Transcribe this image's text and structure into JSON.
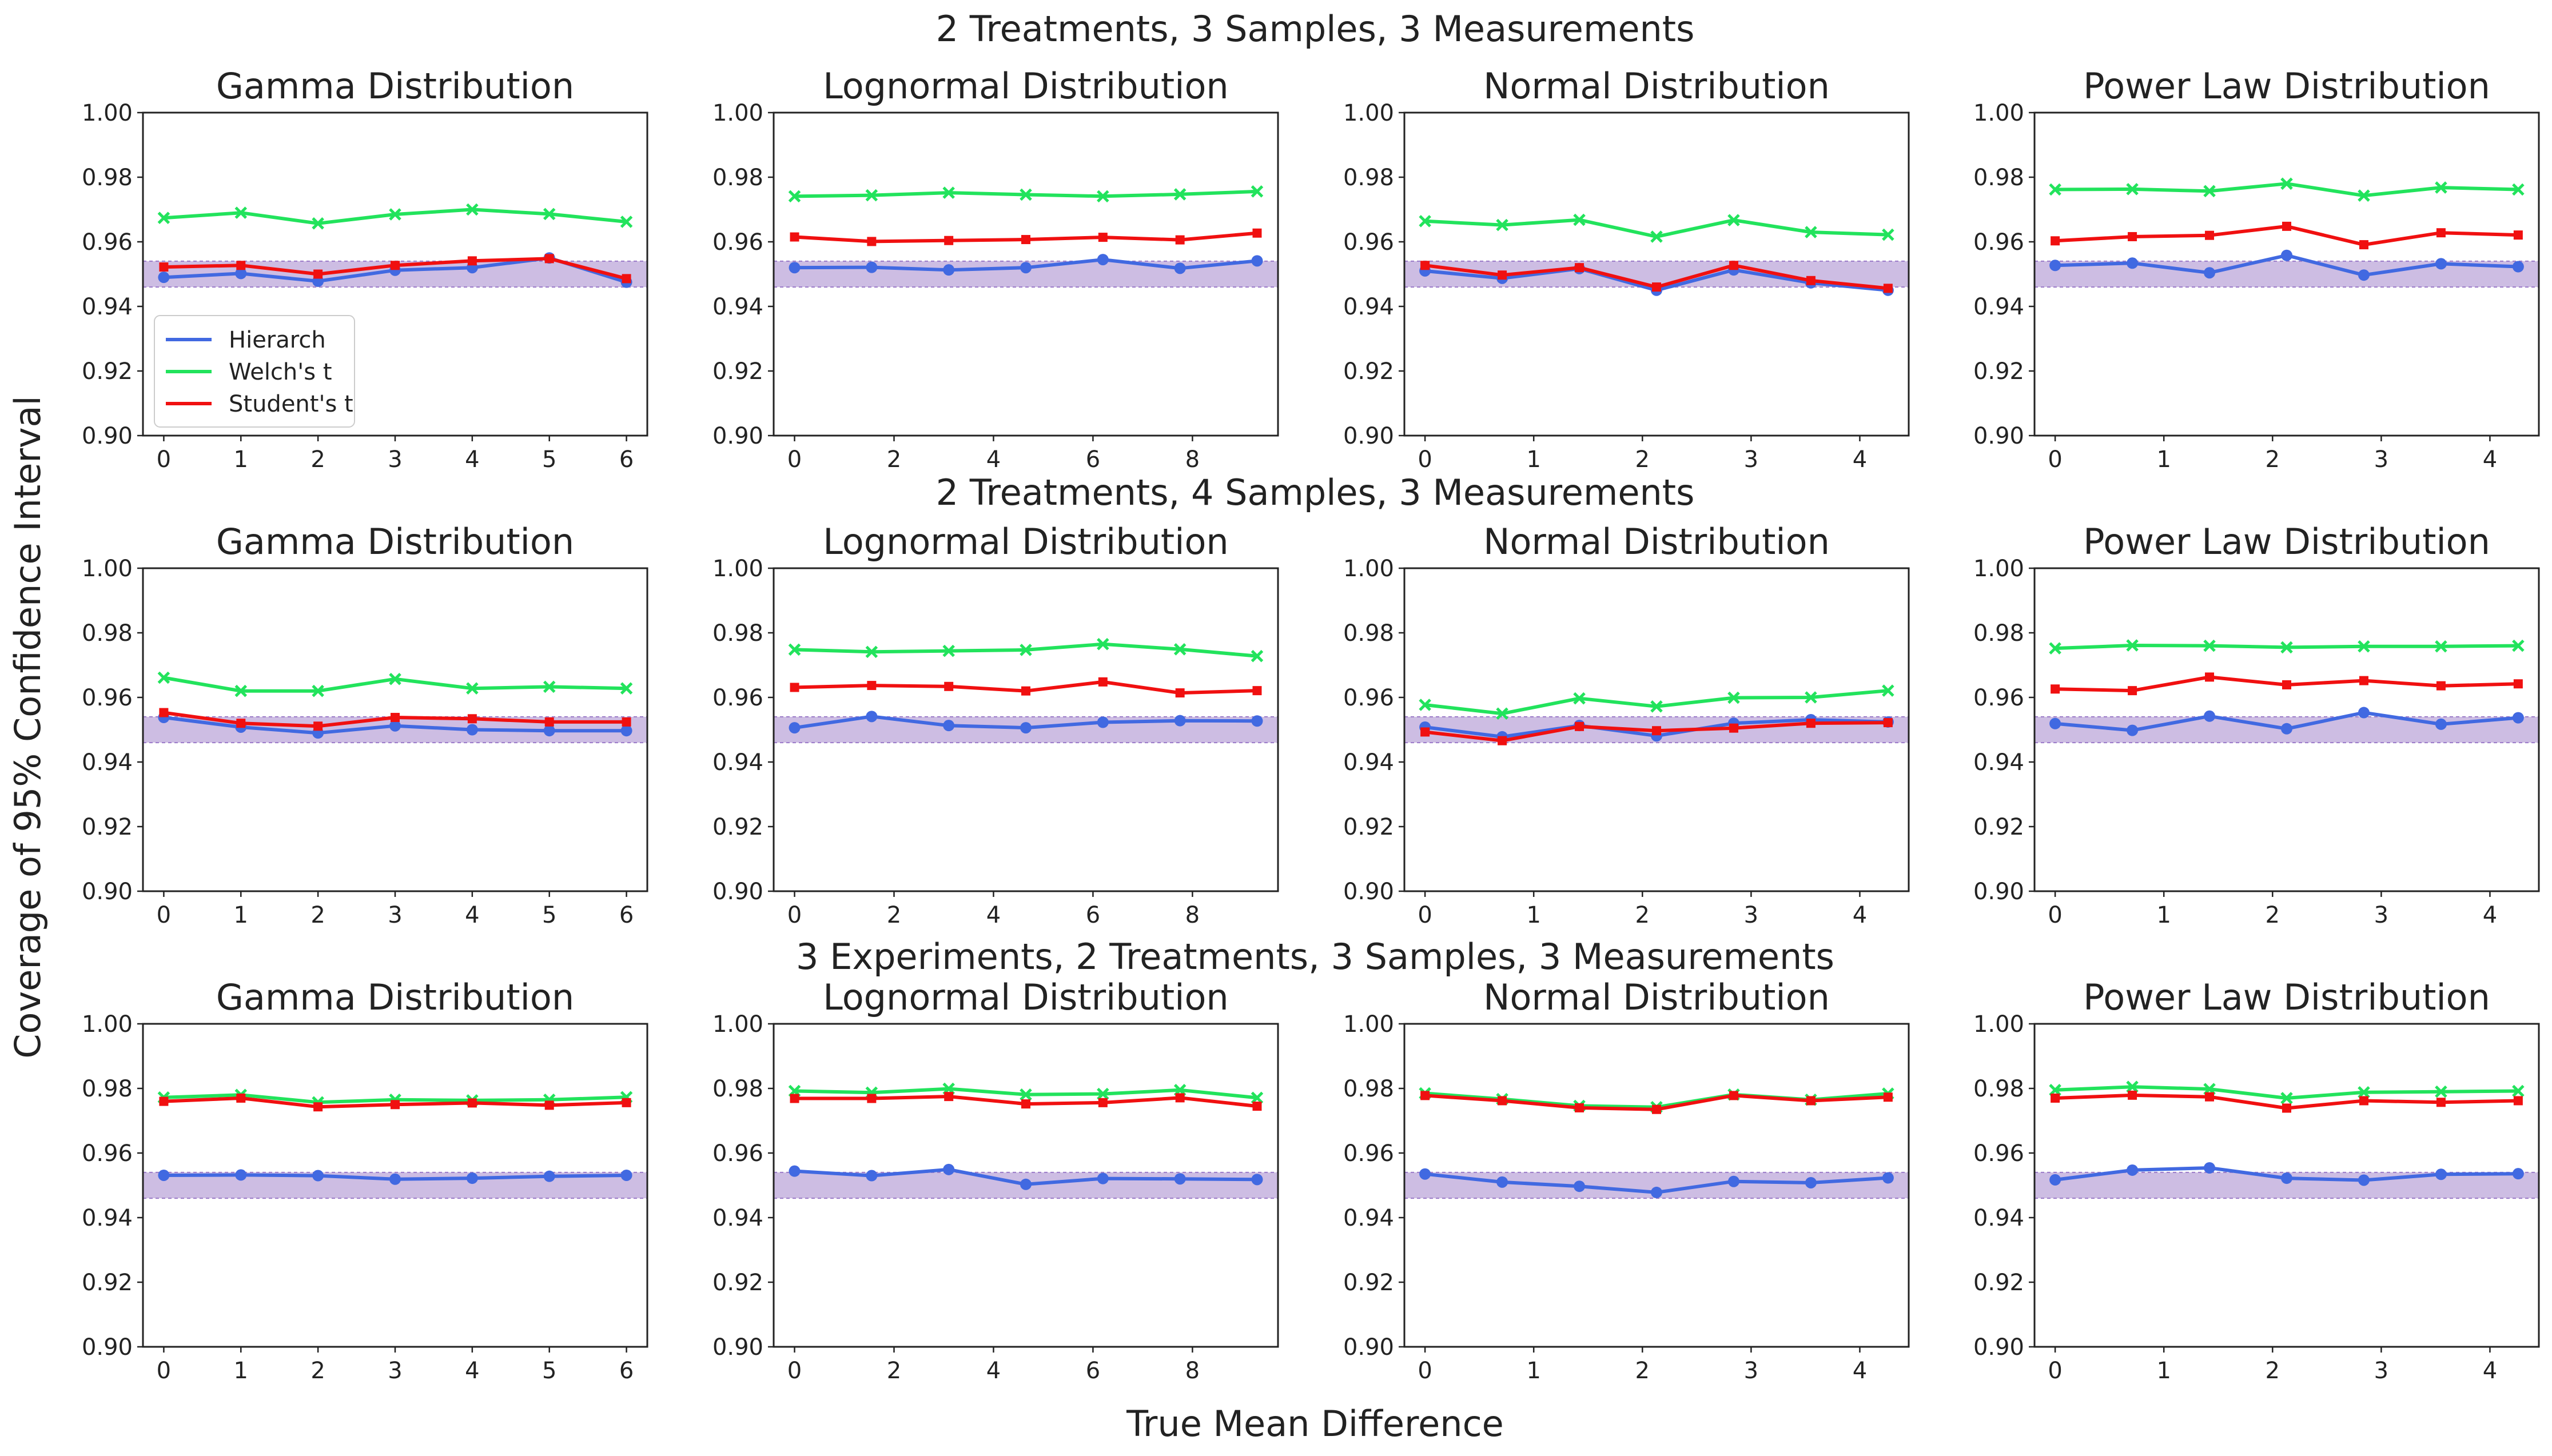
{
  "figure": {
    "ylabel": "Coverage of 95% Confidence Interval",
    "xlabel": "True Mean Difference"
  },
  "legend": {
    "placement": "lower-left of first panel",
    "entries": [
      {
        "name": "Hierarch",
        "color": "#4169E1",
        "marker": "circle"
      },
      {
        "name": "Welch's t",
        "color": "#22E35C",
        "marker": "x"
      },
      {
        "name": "Student's t",
        "color": "#F01010",
        "marker": "square"
      }
    ]
  },
  "band": {
    "range": [
      0.946,
      0.954
    ],
    "color": "#9B7BC8"
  },
  "rows": [
    {
      "title": "2 Treatments, 3 Samples, 3 Measurements"
    },
    {
      "title": "2 Treatments, 4 Samples, 3 Measurements"
    },
    {
      "title": "3 Experiments, 2 Treatments, 3 Samples, 3 Measurements"
    }
  ],
  "chart_data": [
    {
      "type": "line",
      "row": 0,
      "title": "Gamma Distribution",
      "x": [
        0,
        1,
        2,
        3,
        4,
        5,
        6
      ],
      "xlim": [
        -0.27,
        6.27
      ],
      "xticks": [
        "0",
        "1",
        "2",
        "3",
        "4",
        "5",
        "6"
      ],
      "xtick_values": [
        0,
        1,
        2,
        3,
        4,
        5,
        6
      ],
      "ylim": [
        0.9,
        1.0
      ],
      "yticks": [
        "0.90",
        "0.92",
        "0.94",
        "0.96",
        "0.98",
        "1.00"
      ],
      "legend": true,
      "series": [
        {
          "name": "Hierarch",
          "values": [
            0.949,
            0.9502,
            0.9478,
            0.9512,
            0.952,
            0.955,
            0.9475
          ]
        },
        {
          "name": "Welch's t",
          "values": [
            0.9674,
            0.969,
            0.9657,
            0.9685,
            0.97,
            0.9686,
            0.9662
          ]
        },
        {
          "name": "Student's t",
          "values": [
            0.9522,
            0.9527,
            0.95,
            0.9527,
            0.9541,
            0.9548,
            0.9486
          ]
        }
      ]
    },
    {
      "type": "line",
      "row": 0,
      "title": "Lognormal Distribution",
      "x": [
        0,
        1.55,
        3.1,
        4.65,
        6.2,
        7.75,
        9.3
      ],
      "xlim": [
        -0.42,
        9.72
      ],
      "xticks": [
        "0",
        "2",
        "4",
        "6",
        "8"
      ],
      "xtick_values": [
        0,
        2,
        4,
        6,
        8
      ],
      "ylim": [
        0.9,
        1.0
      ],
      "yticks": [
        "0.90",
        "0.92",
        "0.94",
        "0.96",
        "0.98",
        "1.00"
      ],
      "series": [
        {
          "name": "Hierarch",
          "values": [
            0.952,
            0.9521,
            0.9513,
            0.952,
            0.9545,
            0.9518,
            0.9541
          ]
        },
        {
          "name": "Welch's t",
          "values": [
            0.9741,
            0.9744,
            0.9752,
            0.9746,
            0.9741,
            0.9747,
            0.9756
          ]
        },
        {
          "name": "Student's t",
          "values": [
            0.9615,
            0.9601,
            0.9604,
            0.9607,
            0.9614,
            0.9606,
            0.9627
          ]
        }
      ]
    },
    {
      "type": "line",
      "row": 0,
      "title": "Normal Distribution",
      "x": [
        0,
        0.71,
        1.42,
        2.13,
        2.84,
        3.55,
        4.26
      ],
      "xlim": [
        -0.19,
        4.45
      ],
      "xticks": [
        "0",
        "1",
        "2",
        "3",
        "4"
      ],
      "xtick_values": [
        0,
        1,
        2,
        3,
        4
      ],
      "ylim": [
        0.9,
        1.0
      ],
      "yticks": [
        "0.90",
        "0.92",
        "0.94",
        "0.96",
        "0.98",
        "1.00"
      ],
      "series": [
        {
          "name": "Hierarch",
          "values": [
            0.951,
            0.9487,
            0.9517,
            0.945,
            0.9513,
            0.9473,
            0.945
          ]
        },
        {
          "name": "Welch's t",
          "values": [
            0.9664,
            0.9652,
            0.9668,
            0.9616,
            0.9667,
            0.963,
            0.9622
          ]
        },
        {
          "name": "Student's t",
          "values": [
            0.9527,
            0.9497,
            0.952,
            0.946,
            0.9527,
            0.948,
            0.9456
          ]
        }
      ]
    },
    {
      "type": "line",
      "row": 0,
      "title": "Power Law Distribution",
      "x": [
        0,
        0.71,
        1.42,
        2.13,
        2.84,
        3.55,
        4.26
      ],
      "xlim": [
        -0.19,
        4.45
      ],
      "xticks": [
        "0",
        "1",
        "2",
        "3",
        "4"
      ],
      "xtick_values": [
        0,
        1,
        2,
        3,
        4
      ],
      "ylim": [
        0.9,
        1.0
      ],
      "yticks": [
        "0.90",
        "0.92",
        "0.94",
        "0.96",
        "0.98",
        "1.00"
      ],
      "series": [
        {
          "name": "Hierarch",
          "values": [
            0.9527,
            0.9534,
            0.9504,
            0.9558,
            0.9497,
            0.9532,
            0.9523
          ]
        },
        {
          "name": "Welch's t",
          "values": [
            0.9762,
            0.9763,
            0.9757,
            0.978,
            0.9743,
            0.9768,
            0.9762
          ]
        },
        {
          "name": "Student's t",
          "values": [
            0.9603,
            0.9616,
            0.962,
            0.9648,
            0.9591,
            0.9628,
            0.9621
          ]
        }
      ]
    },
    {
      "type": "line",
      "row": 1,
      "title": "Gamma Distribution",
      "x": [
        0,
        1,
        2,
        3,
        4,
        5,
        6
      ],
      "xlim": [
        -0.27,
        6.27
      ],
      "xticks": [
        "0",
        "1",
        "2",
        "3",
        "4",
        "5",
        "6"
      ],
      "xtick_values": [
        0,
        1,
        2,
        3,
        4,
        5,
        6
      ],
      "ylim": [
        0.9,
        1.0
      ],
      "yticks": [
        "0.90",
        "0.92",
        "0.94",
        "0.96",
        "0.98",
        "1.00"
      ],
      "series": [
        {
          "name": "Hierarch",
          "values": [
            0.9538,
            0.9508,
            0.949,
            0.9512,
            0.95,
            0.9497,
            0.9497
          ]
        },
        {
          "name": "Welch's t",
          "values": [
            0.9661,
            0.962,
            0.962,
            0.9657,
            0.9628,
            0.9633,
            0.9628
          ]
        },
        {
          "name": "Student's t",
          "values": [
            0.9553,
            0.952,
            0.9511,
            0.9538,
            0.9534,
            0.9524,
            0.9524
          ]
        }
      ]
    },
    {
      "type": "line",
      "row": 1,
      "title": "Lognormal Distribution",
      "x": [
        0,
        1.55,
        3.1,
        4.65,
        6.2,
        7.75,
        9.3
      ],
      "xlim": [
        -0.42,
        9.72
      ],
      "xticks": [
        "0",
        "2",
        "4",
        "6",
        "8"
      ],
      "xtick_values": [
        0,
        2,
        4,
        6,
        8
      ],
      "ylim": [
        0.9,
        1.0
      ],
      "yticks": [
        "0.90",
        "0.92",
        "0.94",
        "0.96",
        "0.98",
        "1.00"
      ],
      "series": [
        {
          "name": "Hierarch",
          "values": [
            0.9506,
            0.9541,
            0.9513,
            0.9506,
            0.9523,
            0.9528,
            0.9527
          ]
        },
        {
          "name": "Welch's t",
          "values": [
            0.9748,
            0.9741,
            0.9744,
            0.9747,
            0.9765,
            0.9749,
            0.9728
          ]
        },
        {
          "name": "Student's t",
          "values": [
            0.9631,
            0.9637,
            0.9634,
            0.962,
            0.9648,
            0.9614,
            0.9621
          ]
        }
      ]
    },
    {
      "type": "line",
      "row": 1,
      "title": "Normal Distribution",
      "x": [
        0,
        0.71,
        1.42,
        2.13,
        2.84,
        3.55,
        4.26
      ],
      "xlim": [
        -0.19,
        4.45
      ],
      "xticks": [
        "0",
        "1",
        "2",
        "3",
        "4"
      ],
      "xtick_values": [
        0,
        1,
        2,
        3,
        4
      ],
      "ylim": [
        0.9,
        1.0
      ],
      "yticks": [
        "0.90",
        "0.92",
        "0.94",
        "0.96",
        "0.98",
        "1.00"
      ],
      "series": [
        {
          "name": "Hierarch",
          "values": [
            0.9508,
            0.9478,
            0.9513,
            0.9481,
            0.952,
            0.9531,
            0.9524
          ]
        },
        {
          "name": "Welch's t",
          "values": [
            0.9577,
            0.955,
            0.9597,
            0.9572,
            0.9599,
            0.96,
            0.9621
          ]
        },
        {
          "name": "Student's t",
          "values": [
            0.9493,
            0.9466,
            0.951,
            0.9497,
            0.9505,
            0.952,
            0.9522
          ]
        }
      ]
    },
    {
      "type": "line",
      "row": 1,
      "title": "Power Law Distribution",
      "x": [
        0,
        0.71,
        1.42,
        2.13,
        2.84,
        3.55,
        4.26
      ],
      "xlim": [
        -0.19,
        4.45
      ],
      "xticks": [
        "0",
        "1",
        "2",
        "3",
        "4"
      ],
      "xtick_values": [
        0,
        1,
        2,
        3,
        4
      ],
      "ylim": [
        0.9,
        1.0
      ],
      "yticks": [
        "0.90",
        "0.92",
        "0.94",
        "0.96",
        "0.98",
        "1.00"
      ],
      "series": [
        {
          "name": "Hierarch",
          "values": [
            0.9519,
            0.9498,
            0.9542,
            0.9503,
            0.9553,
            0.9517,
            0.9537
          ]
        },
        {
          "name": "Welch's t",
          "values": [
            0.9752,
            0.9761,
            0.976,
            0.9755,
            0.9758,
            0.9758,
            0.976
          ]
        },
        {
          "name": "Student's t",
          "values": [
            0.9626,
            0.9621,
            0.9663,
            0.9639,
            0.9652,
            0.9636,
            0.9642
          ]
        }
      ]
    },
    {
      "type": "line",
      "row": 2,
      "title": "Gamma Distribution",
      "x": [
        0,
        1,
        2,
        3,
        4,
        5,
        6
      ],
      "xlim": [
        -0.27,
        6.27
      ],
      "xticks": [
        "0",
        "1",
        "2",
        "3",
        "4",
        "5",
        "6"
      ],
      "xtick_values": [
        0,
        1,
        2,
        3,
        4,
        5,
        6
      ],
      "ylim": [
        0.9,
        1.0
      ],
      "yticks": [
        "0.90",
        "0.92",
        "0.94",
        "0.96",
        "0.98",
        "1.00"
      ],
      "series": [
        {
          "name": "Hierarch",
          "values": [
            0.9531,
            0.9532,
            0.953,
            0.9519,
            0.9522,
            0.9528,
            0.9531
          ]
        },
        {
          "name": "Welch's t",
          "values": [
            0.9772,
            0.978,
            0.9757,
            0.9765,
            0.9763,
            0.9765,
            0.9773
          ]
        },
        {
          "name": "Student's t",
          "values": [
            0.976,
            0.977,
            0.9743,
            0.975,
            0.9755,
            0.9748,
            0.9756
          ]
        }
      ]
    },
    {
      "type": "line",
      "row": 2,
      "title": "Lognormal Distribution",
      "x": [
        0,
        1.55,
        3.1,
        4.65,
        6.2,
        7.75,
        9.3
      ],
      "xlim": [
        -0.42,
        9.72
      ],
      "xticks": [
        "0",
        "2",
        "4",
        "6",
        "8"
      ],
      "xtick_values": [
        0,
        2,
        4,
        6,
        8
      ],
      "ylim": [
        0.9,
        1.0
      ],
      "yticks": [
        "0.90",
        "0.92",
        "0.94",
        "0.96",
        "0.98",
        "1.00"
      ],
      "series": [
        {
          "name": "Hierarch",
          "values": [
            0.9544,
            0.953,
            0.9549,
            0.9503,
            0.9521,
            0.952,
            0.9518
          ]
        },
        {
          "name": "Welch's t",
          "values": [
            0.9792,
            0.9787,
            0.9799,
            0.9781,
            0.9783,
            0.9795,
            0.9771
          ]
        },
        {
          "name": "Student's t",
          "values": [
            0.9769,
            0.9769,
            0.9775,
            0.9752,
            0.9756,
            0.9771,
            0.9745
          ]
        }
      ]
    },
    {
      "type": "line",
      "row": 2,
      "title": "Normal Distribution",
      "x": [
        0,
        0.71,
        1.42,
        2.13,
        2.84,
        3.55,
        4.26
      ],
      "xlim": [
        -0.19,
        4.45
      ],
      "xticks": [
        "0",
        "1",
        "2",
        "3",
        "4"
      ],
      "xtick_values": [
        0,
        1,
        2,
        3,
        4
      ],
      "ylim": [
        0.9,
        1.0
      ],
      "yticks": [
        "0.90",
        "0.92",
        "0.94",
        "0.96",
        "0.98",
        "1.00"
      ],
      "series": [
        {
          "name": "Hierarch",
          "values": [
            0.9535,
            0.951,
            0.9497,
            0.9478,
            0.9512,
            0.9508,
            0.9523
          ]
        },
        {
          "name": "Welch's t",
          "values": [
            0.9785,
            0.9767,
            0.9746,
            0.9742,
            0.9781,
            0.9765,
            0.9784
          ]
        },
        {
          "name": "Student's t",
          "values": [
            0.9778,
            0.9762,
            0.974,
            0.9735,
            0.9778,
            0.9762,
            0.9773
          ]
        }
      ]
    },
    {
      "type": "line",
      "row": 2,
      "title": "Power Law Distribution",
      "x": [
        0,
        0.71,
        1.42,
        2.13,
        2.84,
        3.55,
        4.26
      ],
      "xlim": [
        -0.19,
        4.45
      ],
      "xticks": [
        "0",
        "1",
        "2",
        "3",
        "4"
      ],
      "xtick_values": [
        0,
        1,
        2,
        3,
        4
      ],
      "ylim": [
        0.9,
        1.0
      ],
      "yticks": [
        "0.90",
        "0.92",
        "0.94",
        "0.96",
        "0.98",
        "1.00"
      ],
      "series": [
        {
          "name": "Hierarch",
          "values": [
            0.9517,
            0.9547,
            0.9554,
            0.9522,
            0.9516,
            0.9534,
            0.9536
          ]
        },
        {
          "name": "Welch's t",
          "values": [
            0.9795,
            0.9805,
            0.9798,
            0.977,
            0.9788,
            0.979,
            0.9792
          ]
        },
        {
          "name": "Student's t",
          "values": [
            0.977,
            0.9779,
            0.9774,
            0.9739,
            0.9762,
            0.9757,
            0.9762
          ]
        }
      ]
    }
  ]
}
